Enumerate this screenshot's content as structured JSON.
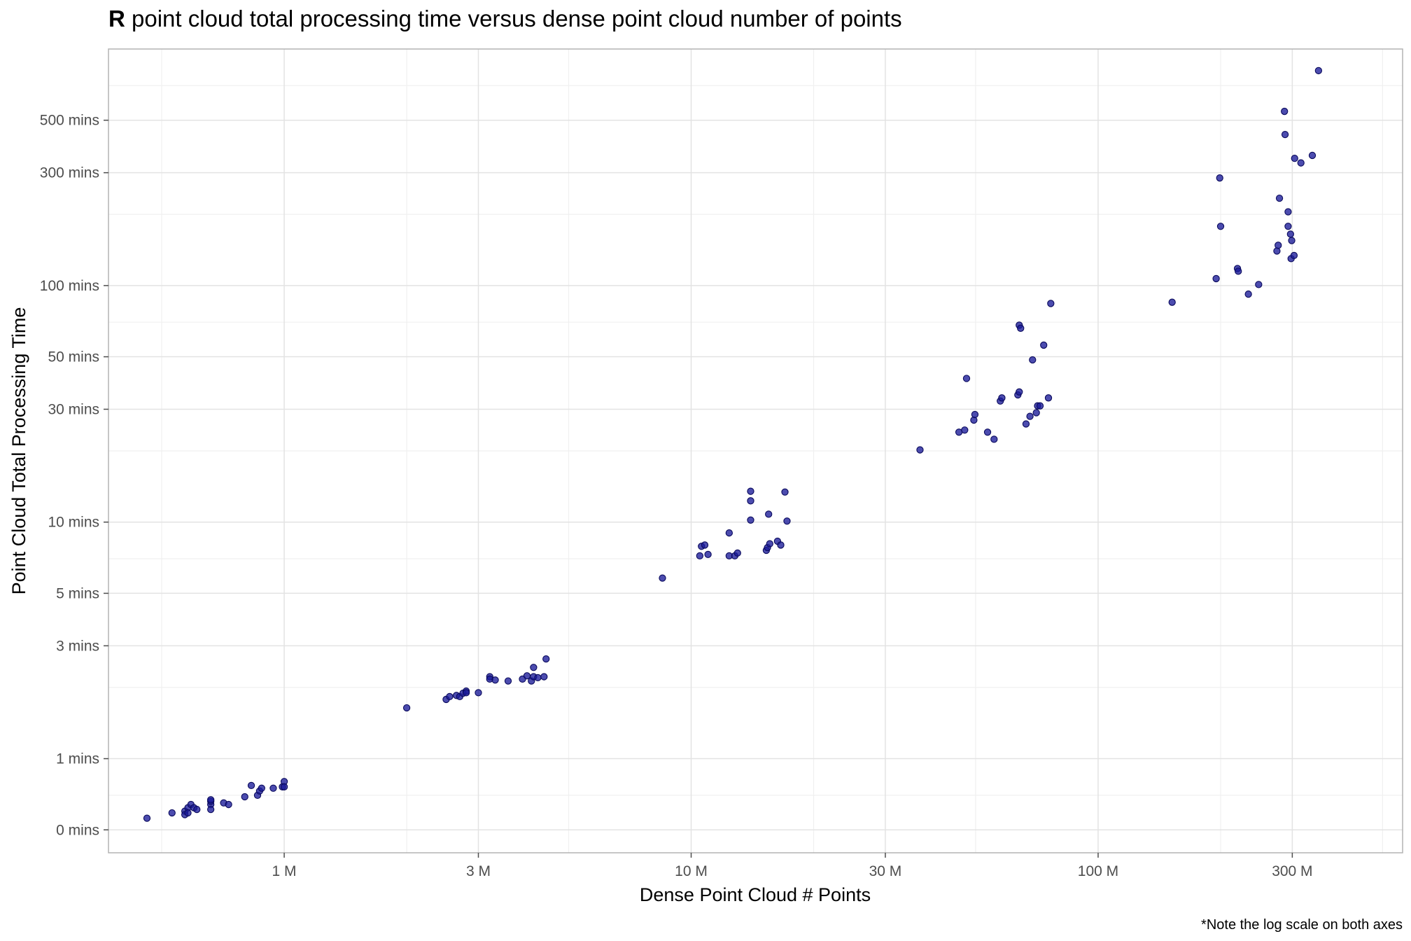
{
  "chart_data": {
    "type": "scatter",
    "title_prefix": "R",
    "title": "point cloud total processing time versus dense point cloud number of points",
    "xlabel": "Dense Point Cloud # Points",
    "ylabel": "Point Cloud Total Processing Time",
    "caption": "*Note the log scale on both axes",
    "x_scale": "log10",
    "y_scale": "log10",
    "xlim": [
      0.37,
      560
    ],
    "ylim": [
      0.4,
      1000
    ],
    "x_ticks": [
      {
        "value": 1,
        "label": "1 M"
      },
      {
        "value": 3,
        "label": "3 M"
      },
      {
        "value": 10,
        "label": "10 M"
      },
      {
        "value": 30,
        "label": "30 M"
      },
      {
        "value": 100,
        "label": "100 M"
      },
      {
        "value": 300,
        "label": "300 M"
      }
    ],
    "x_minor": [
      0.5,
      2,
      5,
      20,
      50,
      200,
      500
    ],
    "y_ticks": [
      {
        "value": 0.5,
        "label": "0 mins"
      },
      {
        "value": 1,
        "label": "1 mins"
      },
      {
        "value": 3,
        "label": "3 mins"
      },
      {
        "value": 5,
        "label": "5 mins"
      },
      {
        "value": 10,
        "label": "10 mins"
      },
      {
        "value": 30,
        "label": "30 mins"
      },
      {
        "value": 50,
        "label": "50 mins"
      },
      {
        "value": 100,
        "label": "100 mins"
      },
      {
        "value": 300,
        "label": "300 mins"
      },
      {
        "value": 500,
        "label": "500 mins"
      }
    ],
    "y_minor": [
      0.7,
      2,
      7,
      20,
      70,
      200,
      700
    ],
    "grid": true,
    "point_color": "#1a1a99",
    "point_stroke": "#0a0a5c",
    "points": [
      [
        0.46,
        0.56
      ],
      [
        0.53,
        0.59
      ],
      [
        0.57,
        0.6
      ],
      [
        0.58,
        0.62
      ],
      [
        0.59,
        0.64
      ],
      [
        0.6,
        0.62
      ],
      [
        0.61,
        0.61
      ],
      [
        0.57,
        0.58
      ],
      [
        0.58,
        0.59
      ],
      [
        0.66,
        0.64
      ],
      [
        0.66,
        0.66
      ],
      [
        0.66,
        0.67
      ],
      [
        0.66,
        0.61
      ],
      [
        0.71,
        0.65
      ],
      [
        0.73,
        0.64
      ],
      [
        0.8,
        0.69
      ],
      [
        0.83,
        0.77
      ],
      [
        0.86,
        0.7
      ],
      [
        0.87,
        0.73
      ],
      [
        0.88,
        0.75
      ],
      [
        0.94,
        0.75
      ],
      [
        0.99,
        0.76
      ],
      [
        1.0,
        0.8
      ],
      [
        1.0,
        0.76
      ],
      [
        2.0,
        1.64
      ],
      [
        2.5,
        1.78
      ],
      [
        2.55,
        1.83
      ],
      [
        2.65,
        1.85
      ],
      [
        2.7,
        1.83
      ],
      [
        2.75,
        1.89
      ],
      [
        2.8,
        1.93
      ],
      [
        2.8,
        1.9
      ],
      [
        3.0,
        1.9
      ],
      [
        3.2,
        2.22
      ],
      [
        3.2,
        2.17
      ],
      [
        3.3,
        2.15
      ],
      [
        3.55,
        2.13
      ],
      [
        3.85,
        2.17
      ],
      [
        3.95,
        2.24
      ],
      [
        4.05,
        2.13
      ],
      [
        4.1,
        2.22
      ],
      [
        4.1,
        2.43
      ],
      [
        4.2,
        2.2
      ],
      [
        4.35,
        2.22
      ],
      [
        4.4,
        2.64
      ],
      [
        8.5,
        5.8
      ],
      [
        10.5,
        7.2
      ],
      [
        10.6,
        7.9
      ],
      [
        10.8,
        8.0
      ],
      [
        11.0,
        7.3
      ],
      [
        12.4,
        7.2
      ],
      [
        12.4,
        9.0
      ],
      [
        12.8,
        7.2
      ],
      [
        13.0,
        7.4
      ],
      [
        14.0,
        10.2
      ],
      [
        14.0,
        12.3
      ],
      [
        14.0,
        13.5
      ],
      [
        15.3,
        7.6
      ],
      [
        15.4,
        7.8
      ],
      [
        15.5,
        10.8
      ],
      [
        15.6,
        8.1
      ],
      [
        16.3,
        8.3
      ],
      [
        16.6,
        8.0
      ],
      [
        17.0,
        13.4
      ],
      [
        17.2,
        10.1
      ],
      [
        36.5,
        20.2
      ],
      [
        45.5,
        24.0
      ],
      [
        47.0,
        24.5
      ],
      [
        47.5,
        40.5
      ],
      [
        49.5,
        27.0
      ],
      [
        49.8,
        28.5
      ],
      [
        53.5,
        24.0
      ],
      [
        55.5,
        22.4
      ],
      [
        57.5,
        32.5
      ],
      [
        58.0,
        33.5
      ],
      [
        63.5,
        34.5
      ],
      [
        64.0,
        35.5
      ],
      [
        64.0,
        68.0
      ],
      [
        64.5,
        66.0
      ],
      [
        66.5,
        26.0
      ],
      [
        68.0,
        28.0
      ],
      [
        69.0,
        48.5
      ],
      [
        70.5,
        29.0
      ],
      [
        71.0,
        31.0
      ],
      [
        72.0,
        31.0
      ],
      [
        73.5,
        56.0
      ],
      [
        75.5,
        33.5
      ],
      [
        76.5,
        84.0
      ],
      [
        152,
        85
      ],
      [
        195,
        107
      ],
      [
        199,
        285
      ],
      [
        200,
        178
      ],
      [
        220,
        118
      ],
      [
        221,
        115
      ],
      [
        234,
        92
      ],
      [
        248,
        101
      ],
      [
        275,
        140
      ],
      [
        277,
        148
      ],
      [
        279,
        234
      ],
      [
        287,
        545
      ],
      [
        288,
        435
      ],
      [
        293,
        205
      ],
      [
        293,
        178
      ],
      [
        297,
        165
      ],
      [
        298,
        130
      ],
      [
        299,
        155
      ],
      [
        303,
        134
      ],
      [
        304,
        345
      ],
      [
        315,
        330
      ],
      [
        336,
        355
      ],
      [
        348,
        810
      ]
    ]
  }
}
